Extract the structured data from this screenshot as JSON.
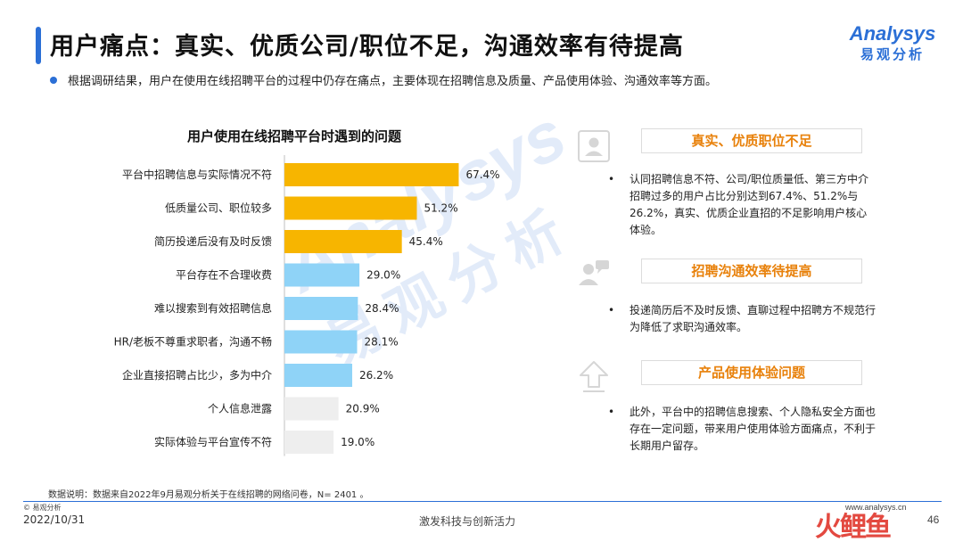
{
  "page": {
    "title": "用户痛点：真实、优质公司/职位不足，沟通效率有待提高",
    "intro": "根据调研结果，用户在使用在线招聘平台的过程中仍存在痛点，主要体现在招聘信息及质量、产品使用体验、沟通效率等方面。",
    "logo_en": "Analysys",
    "logo_cn": "易观分析",
    "watermark_en": "Analysys",
    "watermark_cn": "易观分析"
  },
  "chart_data": {
    "type": "bar",
    "orientation": "horizontal",
    "title": "用户使用在线招聘平台时遇到的问题",
    "categories": [
      "平台中招聘信息与实际情况不符",
      "低质量公司、职位较多",
      "简历投递后没有及时反馈",
      "平台存在不合理收费",
      "难以搜索到有效招聘信息",
      "HR/老板不尊重求职者，沟通不畅",
      "企业直接招聘占比少，多为中介",
      "个人信息泄露",
      "实际体验与平台宣传不符"
    ],
    "values": [
      67.4,
      51.2,
      45.4,
      29.0,
      28.4,
      28.1,
      26.2,
      20.9,
      19.0
    ],
    "value_labels": [
      "67.4%",
      "51.2%",
      "45.4%",
      "29.0%",
      "28.4%",
      "28.1%",
      "26.2%",
      "20.9%",
      "19.0%"
    ],
    "bar_colors": [
      "#f7b500",
      "#f7b500",
      "#f7b500",
      "#8fd3f7",
      "#8fd3f7",
      "#8fd3f7",
      "#8fd3f7",
      "#eeeeee",
      "#eeeeee"
    ],
    "xlim": [
      0,
      100
    ],
    "grid": false,
    "legend": "none"
  },
  "cards": [
    {
      "heading": "真实、优质职位不足",
      "bullet": "•",
      "text": "认同招聘信息不符、公司/职位质量低、第三方中介招聘过多的用户占比分别达到67.4%、51.2%与26.2%，真实、优质企业直招的不足影响用户核心体验。",
      "icon": "id-card-icon"
    },
    {
      "heading": "招聘沟通效率待提高",
      "bullet": "•",
      "text": "投递简历后不及时反馈、直聊过程中招聘方不规范行为降低了求职沟通效率。",
      "icon": "people-chat-icon"
    },
    {
      "heading": "产品使用体验问题",
      "bullet": "•",
      "text": "此外，平台中的招聘信息搜索、个人隐私安全方面也存在一定问题，带来用户使用体验方面痛点，不利于长期用户留存。",
      "icon": "upload-arrow-icon"
    }
  ],
  "footer": {
    "note": "数据说明：数据来自2022年9月易观分析关于在线招聘的网络问卷，N=  2401 。",
    "copyright": "© 易观分析",
    "date": "2022/10/31",
    "slogan": "激发科技与创新活力",
    "site": "www.analysys.cn",
    "page_number": "46",
    "brand_mark": "火鲤鱼"
  },
  "colors": {
    "accent": "#2b6fd6",
    "highlight": "#f7b500",
    "secondary": "#8fd3f7",
    "muted": "#eeeeee",
    "card_heading": "#e8810b"
  }
}
